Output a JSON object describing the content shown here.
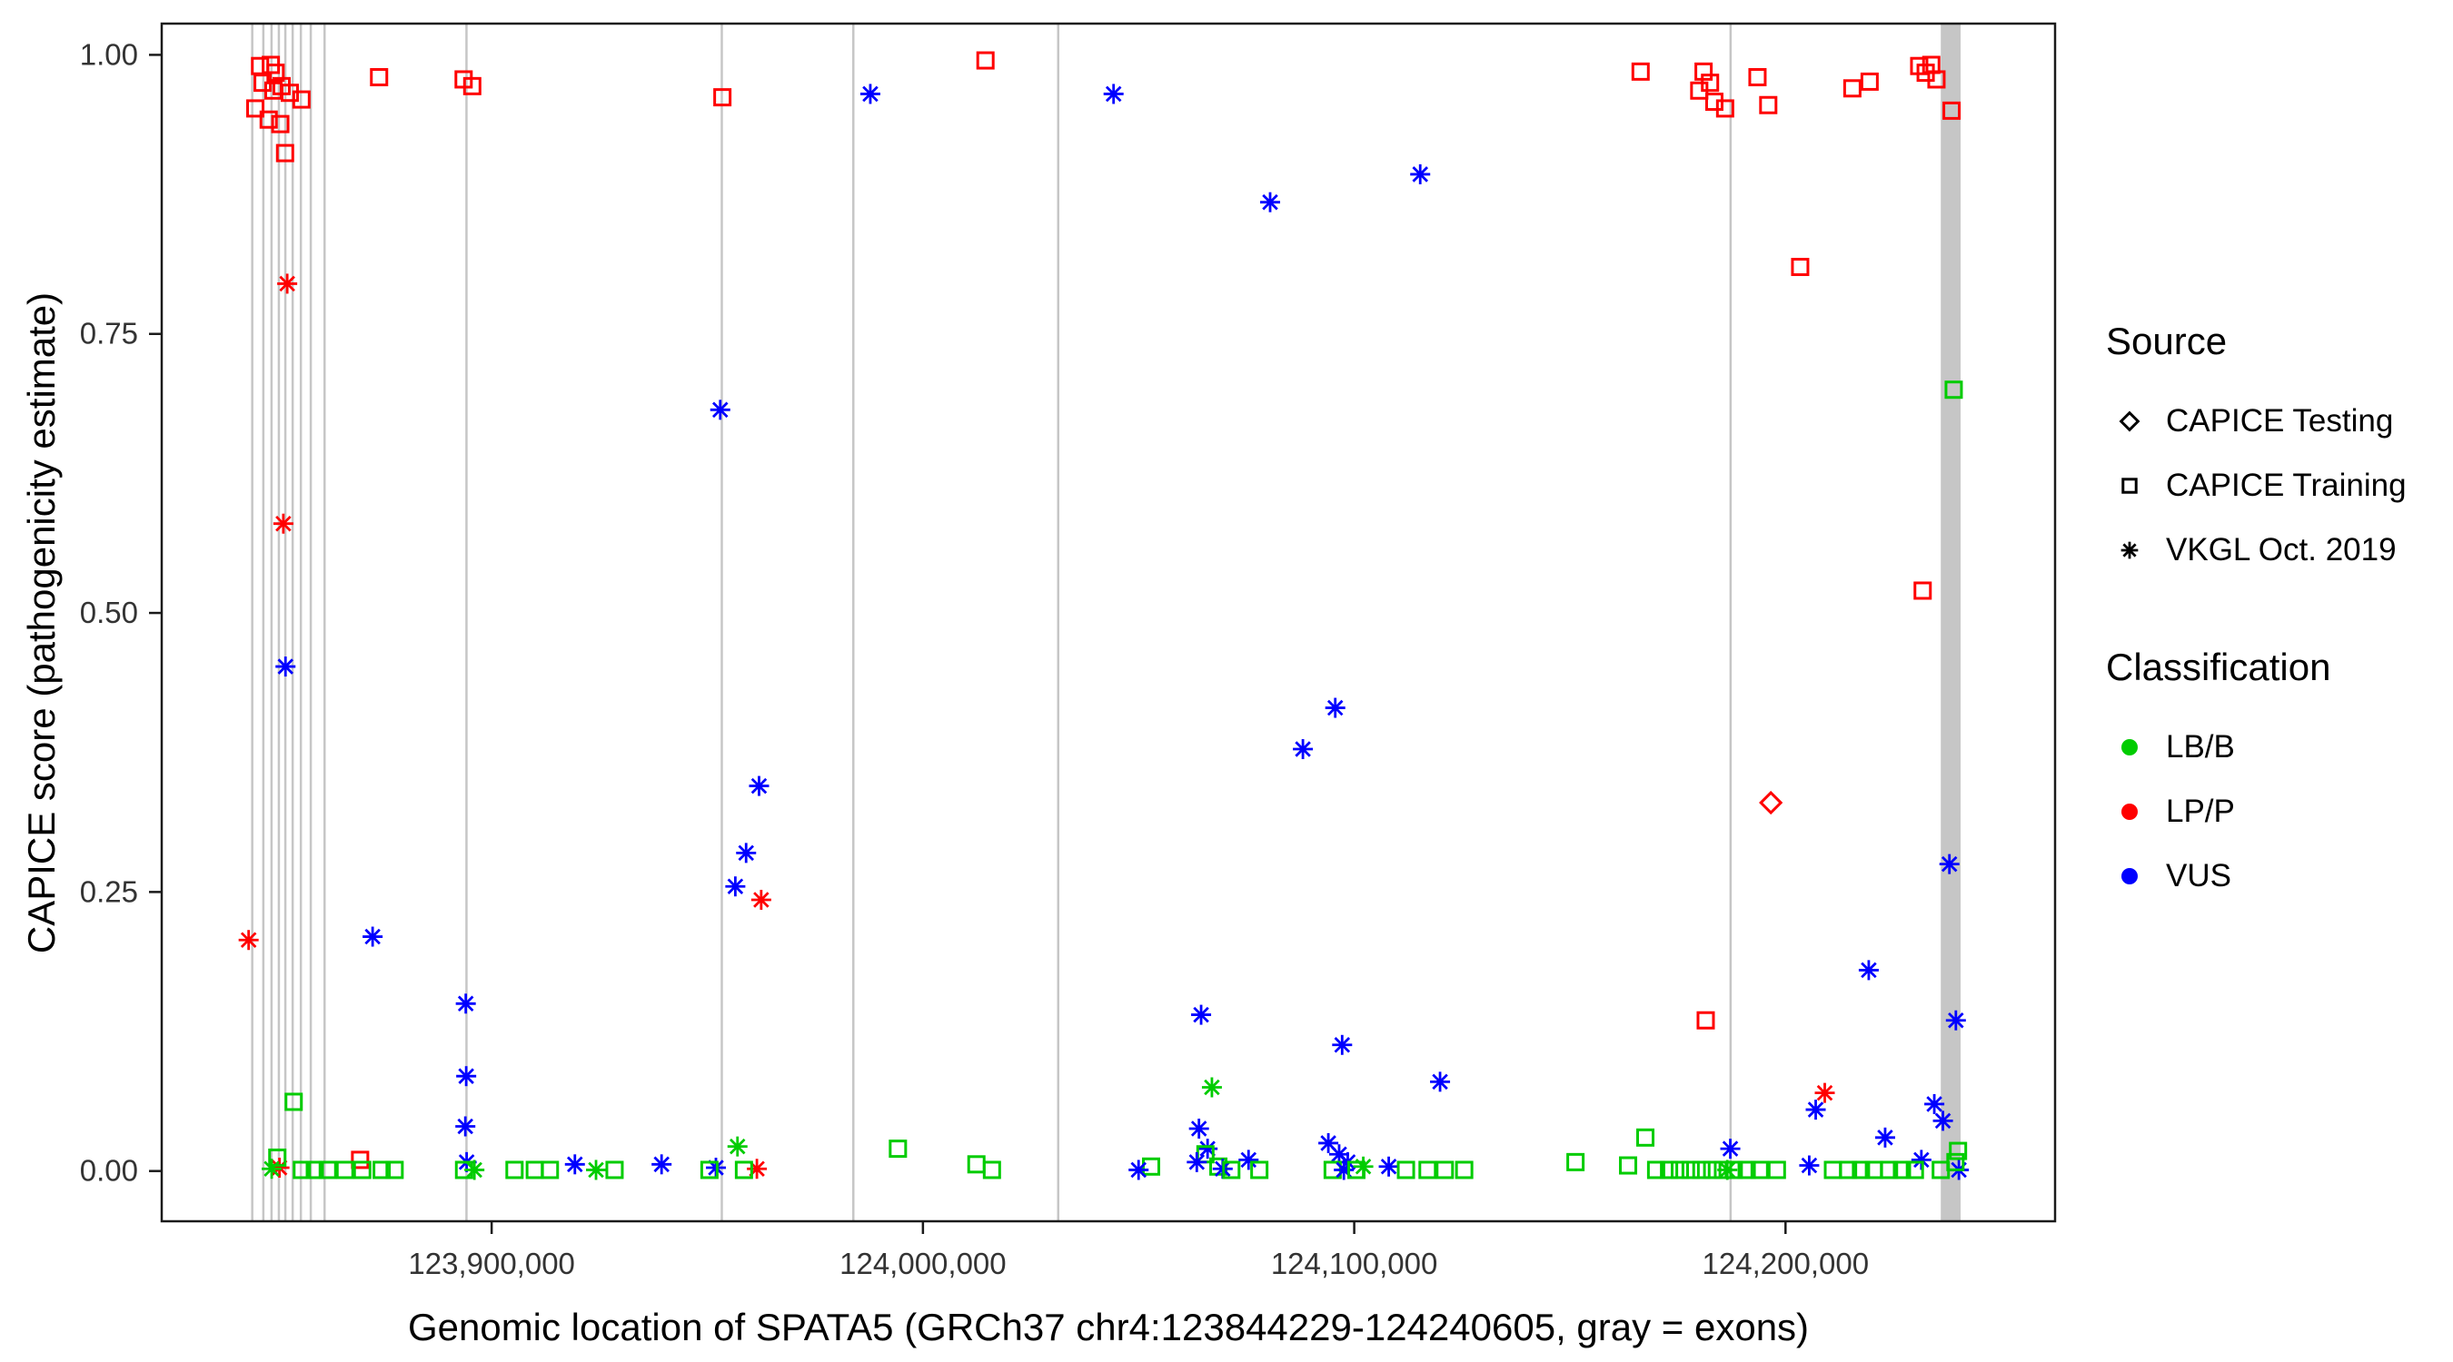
{
  "figure": {
    "background": "#FFFFFF"
  },
  "chart_data": {
    "type": "scatter",
    "title": "",
    "xlabel": "Genomic location of SPATA5 (GRCh37 chr4:123844229-124240605, gray = exons)",
    "ylabel": "CAPICE score (pathogenicity estimate)",
    "x_ticks": [
      123900000,
      124000000,
      124100000,
      124200000
    ],
    "x_tick_labels": [
      "123,900,000",
      "124,000,000",
      "124,100,000",
      "124,200,000"
    ],
    "y_ticks": [
      0.0,
      0.25,
      0.5,
      0.75,
      1.0
    ],
    "y_tick_labels": [
      "0.00",
      "0.25",
      "0.50",
      "0.75",
      "1.00"
    ],
    "xlim": [
      123823500,
      124262500
    ],
    "ylim": [
      -0.045,
      1.028
    ],
    "grid": false,
    "panel_border_color": "#1a1a1a",
    "tick_label_color": "#333333",
    "exon_color": "#c6c6c6",
    "gene_start": 123844229,
    "gene_end": 124240605,
    "legend": {
      "position": "right",
      "source": {
        "title": "Source",
        "items": [
          {
            "label": "CAPICE Testing",
            "marker": "diamond"
          },
          {
            "label": "CAPICE Training",
            "marker": "square"
          },
          {
            "label": "VKGL Oct. 2019",
            "marker": "asterisk"
          }
        ]
      },
      "classification": {
        "title": "Classification",
        "items": [
          {
            "label": "LB/B",
            "color": "#00CC00"
          },
          {
            "label": "LP/P",
            "color": "#FF0000"
          },
          {
            "label": "VUS",
            "color": "#0000FF"
          }
        ]
      }
    },
    "source_marker_map": {
      "testing": "diamond",
      "training": "square",
      "vkgl": "asterisk"
    },
    "exons": [
      [
        123844229,
        123844650
      ],
      [
        123846800,
        123847200
      ],
      [
        123848700,
        123849100
      ],
      [
        123850400,
        123850800
      ],
      [
        123851900,
        123852300
      ],
      [
        123853600,
        123854000
      ],
      [
        123855500,
        123855900
      ],
      [
        123857800,
        123858200
      ],
      [
        123861000,
        123861400
      ],
      [
        123893900,
        123894350
      ],
      [
        123953100,
        123953550
      ],
      [
        123983600,
        123984050
      ],
      [
        124031100,
        124031550
      ],
      [
        124187000,
        124187450
      ],
      [
        124236000,
        124240605
      ]
    ],
    "point_format": [
      "genomic_position",
      "capice_score",
      "source",
      "classification"
    ],
    "points": [
      [
        123846300,
        0.99,
        "training",
        "LP/P"
      ],
      [
        123848800,
        0.991,
        "training",
        "LP/P"
      ],
      [
        123849900,
        0.984,
        "training",
        "LP/P"
      ],
      [
        123846900,
        0.975,
        "training",
        "LP/P"
      ],
      [
        123849400,
        0.968,
        "training",
        "LP/P"
      ],
      [
        123851300,
        0.972,
        "training",
        "LP/P"
      ],
      [
        123853200,
        0.966,
        "training",
        "LP/P"
      ],
      [
        123855900,
        0.96,
        "training",
        "LP/P"
      ],
      [
        123845200,
        0.952,
        "training",
        "LP/P"
      ],
      [
        123848300,
        0.942,
        "training",
        "LP/P"
      ],
      [
        123851000,
        0.938,
        "training",
        "LP/P"
      ],
      [
        123852100,
        0.912,
        "training",
        "LP/P"
      ],
      [
        123873900,
        0.98,
        "training",
        "LP/P"
      ],
      [
        123843650,
        0.207,
        "vkgl",
        "LP/P"
      ],
      [
        123852600,
        0.795,
        "vkgl",
        "LP/P"
      ],
      [
        123851700,
        0.58,
        "vkgl",
        "LP/P"
      ],
      [
        123852200,
        0.452,
        "vkgl",
        "VUS"
      ],
      [
        123872400,
        0.21,
        "vkgl",
        "VUS"
      ],
      [
        123850800,
        0.003,
        "vkgl",
        "LP/P"
      ],
      [
        123869500,
        0.01,
        "training",
        "LP/P"
      ],
      [
        123854100,
        0.062,
        "training",
        "LB/B"
      ],
      [
        123850300,
        0.012,
        "training",
        "LB/B"
      ],
      [
        123849000,
        0.002,
        "vkgl",
        "LB/B"
      ],
      [
        123856000,
        0.001,
        "training",
        "LB/B"
      ],
      [
        123859000,
        0.001,
        "training",
        "LB/B"
      ],
      [
        123862000,
        0.001,
        "training",
        "LB/B"
      ],
      [
        123866000,
        0.001,
        "training",
        "LB/B"
      ],
      [
        123870000,
        0.001,
        "training",
        "LB/B"
      ],
      [
        123874500,
        0.001,
        "training",
        "LB/B"
      ],
      [
        123877500,
        0.001,
        "training",
        "LB/B"
      ],
      [
        123893500,
        0.978,
        "training",
        "LP/P"
      ],
      [
        123895500,
        0.972,
        "training",
        "LP/P"
      ],
      [
        123894000,
        0.15,
        "vkgl",
        "VUS"
      ],
      [
        123894100,
        0.085,
        "vkgl",
        "VUS"
      ],
      [
        123893900,
        0.04,
        "vkgl",
        "VUS"
      ],
      [
        123894200,
        0.008,
        "vkgl",
        "VUS"
      ],
      [
        123893600,
        0.001,
        "training",
        "LB/B"
      ],
      [
        123896000,
        0.001,
        "vkgl",
        "LB/B"
      ],
      [
        123905300,
        0.001,
        "training",
        "LB/B"
      ],
      [
        123910000,
        0.001,
        "training",
        "LB/B"
      ],
      [
        123913500,
        0.001,
        "training",
        "LB/B"
      ],
      [
        123919300,
        0.006,
        "vkgl",
        "VUS"
      ],
      [
        123924200,
        0.001,
        "vkgl",
        "LB/B"
      ],
      [
        123928500,
        0.001,
        "training",
        "LB/B"
      ],
      [
        123939400,
        0.006,
        "vkgl",
        "VUS"
      ],
      [
        123953500,
        0.962,
        "training",
        "LP/P"
      ],
      [
        123953000,
        0.682,
        "vkgl",
        "VUS"
      ],
      [
        123962000,
        0.345,
        "vkgl",
        "VUS"
      ],
      [
        123959000,
        0.285,
        "vkgl",
        "VUS"
      ],
      [
        123956500,
        0.255,
        "vkgl",
        "VUS"
      ],
      [
        123962500,
        0.243,
        "vkgl",
        "LP/P"
      ],
      [
        123957000,
        0.022,
        "vkgl",
        "LB/B"
      ],
      [
        123952000,
        0.003,
        "vkgl",
        "VUS"
      ],
      [
        123950500,
        0.001,
        "training",
        "LB/B"
      ],
      [
        123961500,
        0.002,
        "vkgl",
        "LP/P"
      ],
      [
        123958500,
        0.001,
        "training",
        "LB/B"
      ],
      [
        123987800,
        0.965,
        "vkgl",
        "VUS"
      ],
      [
        123994200,
        0.02,
        "training",
        "LB/B"
      ],
      [
        124012400,
        0.006,
        "training",
        "LB/B"
      ],
      [
        124016000,
        0.001,
        "training",
        "LB/B"
      ],
      [
        124014500,
        0.995,
        "training",
        "LP/P"
      ],
      [
        124044200,
        0.965,
        "vkgl",
        "VUS"
      ],
      [
        124052900,
        0.004,
        "training",
        "LB/B"
      ],
      [
        124050000,
        0.001,
        "vkgl",
        "VUS"
      ],
      [
        124064500,
        0.14,
        "vkgl",
        "VUS"
      ],
      [
        124067000,
        0.075,
        "vkgl",
        "LB/B"
      ],
      [
        124064000,
        0.038,
        "vkgl",
        "VUS"
      ],
      [
        124066000,
        0.02,
        "vkgl",
        "VUS"
      ],
      [
        124065500,
        0.015,
        "training",
        "LB/B"
      ],
      [
        124063500,
        0.008,
        "vkgl",
        "VUS"
      ],
      [
        124068500,
        0.004,
        "training",
        "LB/B"
      ],
      [
        124069500,
        0.002,
        "vkgl",
        "VUS"
      ],
      [
        124071500,
        0.001,
        "training",
        "LB/B"
      ],
      [
        124075500,
        0.01,
        "vkgl",
        "VUS"
      ],
      [
        124078000,
        0.001,
        "training",
        "LB/B"
      ],
      [
        124080500,
        0.868,
        "vkgl",
        "VUS"
      ],
      [
        124088100,
        0.378,
        "vkgl",
        "VUS"
      ],
      [
        124095600,
        0.415,
        "vkgl",
        "VUS"
      ],
      [
        124097200,
        0.113,
        "vkgl",
        "VUS"
      ],
      [
        124094000,
        0.025,
        "vkgl",
        "VUS"
      ],
      [
        124096500,
        0.015,
        "vkgl",
        "VUS"
      ],
      [
        124098500,
        0.008,
        "vkgl",
        "VUS"
      ],
      [
        124102100,
        0.004,
        "vkgl",
        "LB/B"
      ],
      [
        124095000,
        0.001,
        "training",
        "LB/B"
      ],
      [
        124097600,
        0.001,
        "vkgl",
        "VUS"
      ],
      [
        124100500,
        0.001,
        "training",
        "LB/B"
      ],
      [
        124115300,
        0.893,
        "vkgl",
        "VUS"
      ],
      [
        124119900,
        0.08,
        "vkgl",
        "VUS"
      ],
      [
        124108000,
        0.004,
        "vkgl",
        "VUS"
      ],
      [
        124112000,
        0.001,
        "training",
        "LB/B"
      ],
      [
        124117000,
        0.001,
        "training",
        "LB/B"
      ],
      [
        124121000,
        0.001,
        "training",
        "LB/B"
      ],
      [
        124125500,
        0.001,
        "training",
        "LB/B"
      ],
      [
        124151300,
        0.008,
        "training",
        "LB/B"
      ],
      [
        124166400,
        0.985,
        "training",
        "LP/P"
      ],
      [
        124167500,
        0.03,
        "training",
        "LB/B"
      ],
      [
        124163500,
        0.005,
        "training",
        "LB/B"
      ],
      [
        124181000,
        0.985,
        "training",
        "LP/P"
      ],
      [
        124182500,
        0.975,
        "training",
        "LP/P"
      ],
      [
        124180000,
        0.968,
        "training",
        "LP/P"
      ],
      [
        124183500,
        0.958,
        "training",
        "LP/P"
      ],
      [
        124186000,
        0.952,
        "training",
        "LP/P"
      ],
      [
        124193500,
        0.98,
        "training",
        "LP/P"
      ],
      [
        124196000,
        0.955,
        "training",
        "LP/P"
      ],
      [
        124203400,
        0.81,
        "training",
        "LP/P"
      ],
      [
        124215500,
        0.97,
        "training",
        "LP/P"
      ],
      [
        124219500,
        0.976,
        "training",
        "LP/P"
      ],
      [
        124231000,
        0.99,
        "training",
        "LP/P"
      ],
      [
        124232500,
        0.984,
        "training",
        "LP/P"
      ],
      [
        124233800,
        0.991,
        "training",
        "LP/P"
      ],
      [
        124235000,
        0.978,
        "training",
        "LP/P"
      ],
      [
        124238500,
        0.95,
        "training",
        "LP/P"
      ],
      [
        124231800,
        0.52,
        "training",
        "LP/P"
      ],
      [
        124196600,
        0.33,
        "testing",
        "LP/P"
      ],
      [
        124181500,
        0.135,
        "training",
        "LP/P"
      ],
      [
        124209100,
        0.07,
        "vkgl",
        "LP/P"
      ],
      [
        124187200,
        0.02,
        "vkgl",
        "VUS"
      ],
      [
        124207000,
        0.055,
        "vkgl",
        "VUS"
      ],
      [
        124205500,
        0.005,
        "vkgl",
        "VUS"
      ],
      [
        124219300,
        0.18,
        "vkgl",
        "VUS"
      ],
      [
        124223100,
        0.03,
        "vkgl",
        "VUS"
      ],
      [
        124238000,
        0.275,
        "vkgl",
        "VUS"
      ],
      [
        124239500,
        0.135,
        "vkgl",
        "VUS"
      ],
      [
        124234500,
        0.06,
        "vkgl",
        "VUS"
      ],
      [
        124236500,
        0.045,
        "vkgl",
        "VUS"
      ],
      [
        124231500,
        0.01,
        "vkgl",
        "VUS"
      ],
      [
        124240200,
        0.001,
        "vkgl",
        "VUS"
      ],
      [
        124239000,
        0.7,
        "training",
        "LB/B"
      ],
      [
        124170000,
        0.001,
        "training",
        "LB/B"
      ],
      [
        124173000,
        0.001,
        "training",
        "LB/B"
      ],
      [
        124175500,
        0.001,
        "training",
        "LB/B"
      ],
      [
        124178000,
        0.001,
        "training",
        "LB/B"
      ],
      [
        124180500,
        0.001,
        "training",
        "LB/B"
      ],
      [
        124183000,
        0.001,
        "training",
        "LB/B"
      ],
      [
        124185500,
        0.001,
        "training",
        "LB/B"
      ],
      [
        124188000,
        0.001,
        "training",
        "LB/B"
      ],
      [
        124191000,
        0.001,
        "training",
        "LB/B"
      ],
      [
        124194000,
        0.001,
        "training",
        "LB/B"
      ],
      [
        124186500,
        0.001,
        "vkgl",
        "LB/B"
      ],
      [
        124198000,
        0.001,
        "training",
        "LB/B"
      ],
      [
        124211000,
        0.001,
        "training",
        "LB/B"
      ],
      [
        124214500,
        0.001,
        "training",
        "LB/B"
      ],
      [
        124217500,
        0.001,
        "training",
        "LB/B"
      ],
      [
        124220500,
        0.001,
        "training",
        "LB/B"
      ],
      [
        124224000,
        0.001,
        "training",
        "LB/B"
      ],
      [
        124227000,
        0.001,
        "training",
        "LB/B"
      ],
      [
        124230000,
        0.001,
        "training",
        "LB/B"
      ],
      [
        124236000,
        0.001,
        "training",
        "LB/B"
      ],
      [
        124240000,
        0.018,
        "training",
        "LB/B"
      ],
      [
        124239400,
        0.008,
        "training",
        "LB/B"
      ]
    ]
  }
}
